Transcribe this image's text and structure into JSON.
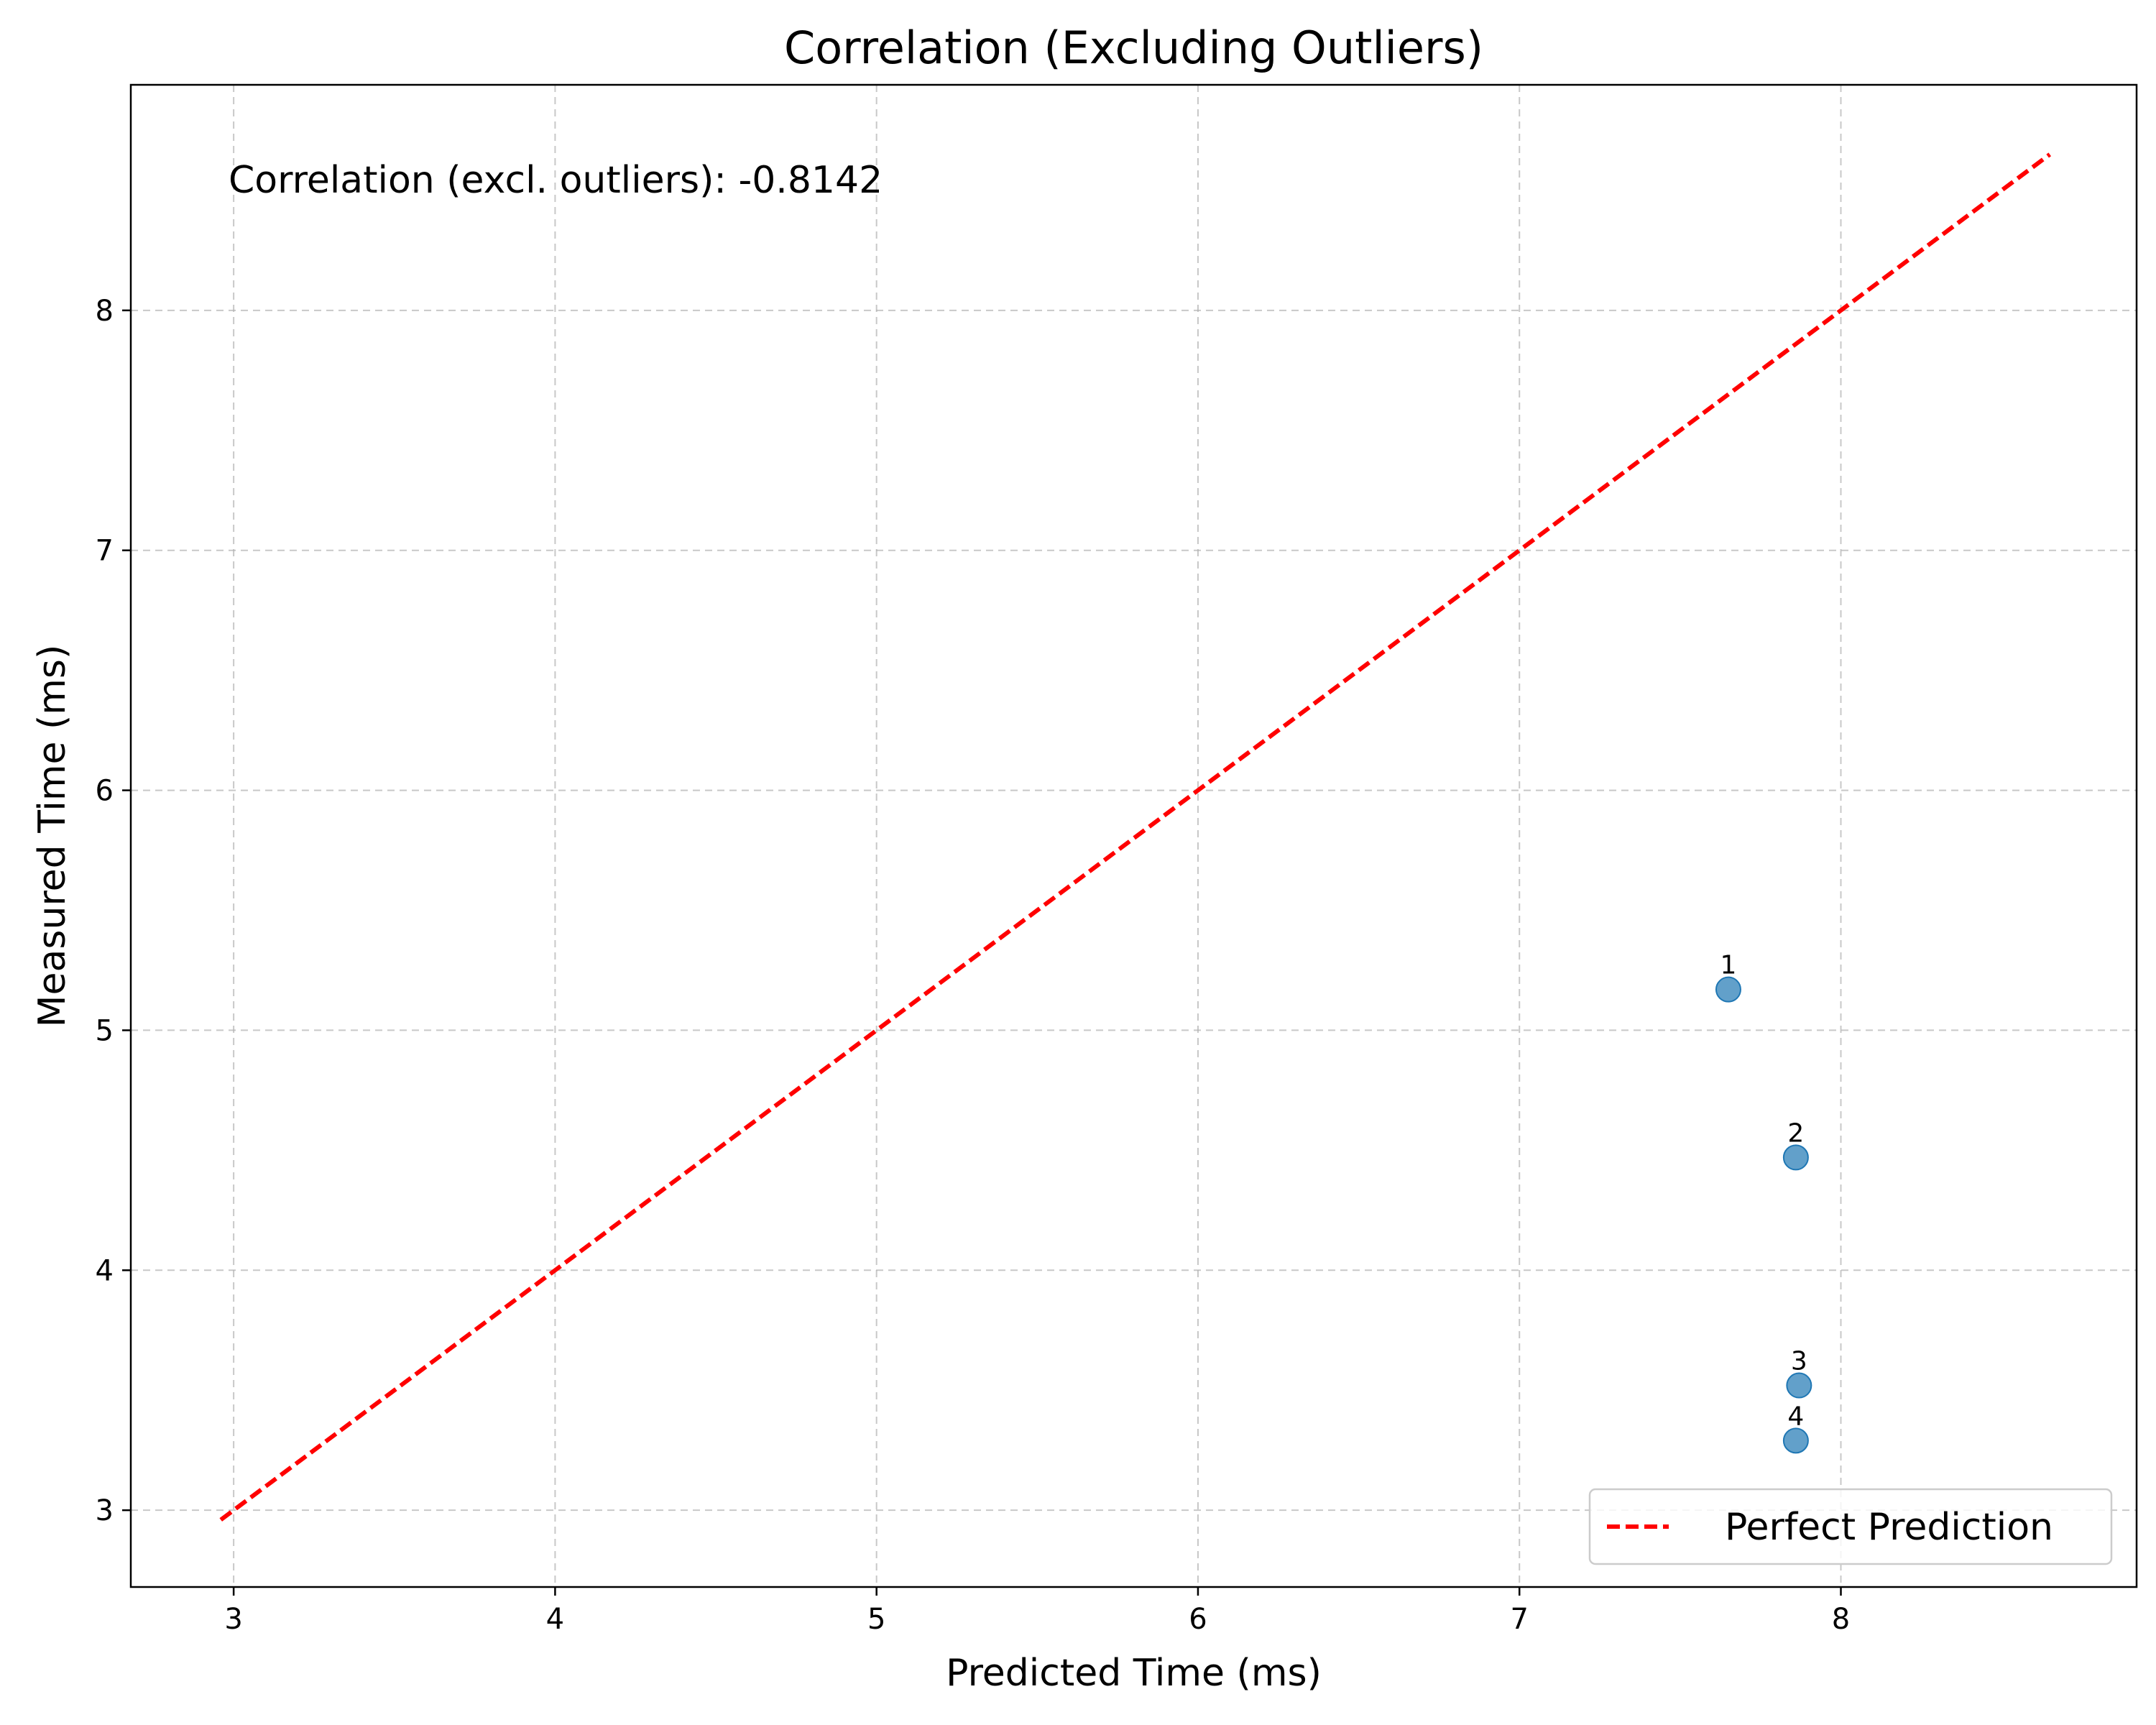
{
  "chart_data": {
    "type": "scatter",
    "title": "Correlation (Excluding Outliers)",
    "xlabel": "Predicted Time (ms)",
    "ylabel": "Measured Time (ms)",
    "xlim": [
      2.68,
      8.92
    ],
    "ylim": [
      2.68,
      8.94
    ],
    "xticks": [
      3,
      4,
      5,
      6,
      7,
      8
    ],
    "yticks": [
      3,
      4,
      5,
      6,
      7,
      8
    ],
    "grid": true,
    "legend_position": "bottom-right",
    "annotation": "Correlation (excl. outliers): -0.8142",
    "point_color": "#1f77b4",
    "points": [
      {
        "label": "1",
        "x": 7.65,
        "y": 5.17
      },
      {
        "label": "2",
        "x": 7.86,
        "y": 4.47
      },
      {
        "label": "3",
        "x": 7.87,
        "y": 3.52
      },
      {
        "label": "4",
        "x": 7.86,
        "y": 3.29
      }
    ],
    "series": [
      {
        "name": "Perfect Prediction",
        "style": "dashed",
        "color": "#ff0000",
        "x": [
          2.96,
          8.65
        ],
        "y": [
          2.96,
          8.65
        ]
      }
    ]
  }
}
